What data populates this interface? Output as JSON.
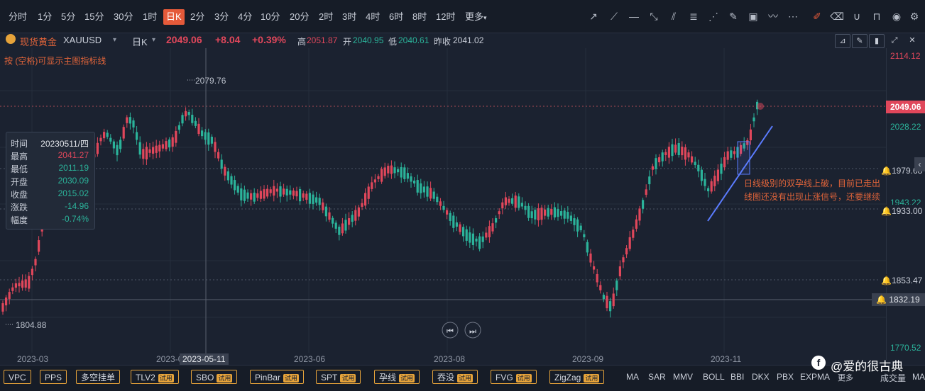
{
  "toolbar": {
    "timeframes": [
      "分时",
      "1分",
      "5分",
      "15分",
      "30分",
      "1时",
      "日K",
      "2分",
      "3分",
      "4分",
      "10分",
      "20分",
      "2时",
      "3时",
      "4时",
      "6时",
      "8时",
      "12时",
      "更多"
    ],
    "active": "日K"
  },
  "header": {
    "symbol_name": "现货黄金",
    "symbol_code": "XAUUSD",
    "period": "日K",
    "price": "2049.06",
    "change": "+8.04",
    "change_pct": "+0.39%",
    "high_label": "高",
    "high": "2051.87",
    "open_label": "开",
    "open": "2040.95",
    "low_label": "低",
    "low": "2040.61",
    "prev_label": "昨收",
    "prev": "2041.02",
    "tip": "按 (空格)可显示主图指标线"
  },
  "price_axis": {
    "top": "2114.12",
    "current": "2049.06",
    "p2028": "2028.22",
    "p1979": "1979.68",
    "p1943": "1943.22",
    "p1933": "1933.00",
    "p1853": "1853.47",
    "p1832": "1832.19",
    "bottom": "1770.52"
  },
  "annotations": {
    "high_mark": "2079.76",
    "low_mark": "1804.88",
    "note_line1": "日线级别的双孕线上破，目前已走出",
    "note_line2": "线图还没有出现止涨信号，还要继续"
  },
  "tooltip": {
    "time_label": "时间",
    "time": "20230511/四",
    "high_label": "最高",
    "high": "2041.27",
    "low_label": "最低",
    "low": "2011.19",
    "open_label": "开盘",
    "open": "2030.09",
    "close_label": "收盘",
    "close": "2015.02",
    "chg_label": "涨跌",
    "chg": "-14.96",
    "amp_label": "幅度",
    "amp": "-0.74%"
  },
  "x_axis": {
    "labels": [
      "2023-03",
      "2023-0",
      "2023-06",
      "2023-08",
      "2023-09",
      "2023-11"
    ],
    "crosshair": "2023-05-11"
  },
  "bottom": {
    "indicators": [
      {
        "label": "VPC",
        "trial": ""
      },
      {
        "label": "PPS",
        "trial": ""
      },
      {
        "label": "多空挂单",
        "trial": ""
      },
      {
        "label": "TLV2",
        "trial": "试用"
      },
      {
        "label": "SBO",
        "trial": "试用"
      },
      {
        "label": "PinBar",
        "trial": "试用"
      },
      {
        "label": "SPT",
        "trial": "试用"
      },
      {
        "label": "孕线",
        "trial": "试用"
      },
      {
        "label": "吞没",
        "trial": "试用"
      },
      {
        "label": "FVG",
        "trial": "试用"
      },
      {
        "label": "ZigZag",
        "trial": "试用"
      }
    ],
    "mas": [
      "MA",
      "SAR",
      "MMV",
      "BOLL",
      "BBI",
      "DKX",
      "PBX",
      "EXPMA",
      "更多"
    ],
    "volume": "成交量",
    "watermark": "@爱的很古典",
    "tail": "MA"
  },
  "colors": {
    "up": "#e0475b",
    "down": "#2bb39a",
    "accent": "#e55a3a",
    "trend": "#5b7cff"
  }
}
